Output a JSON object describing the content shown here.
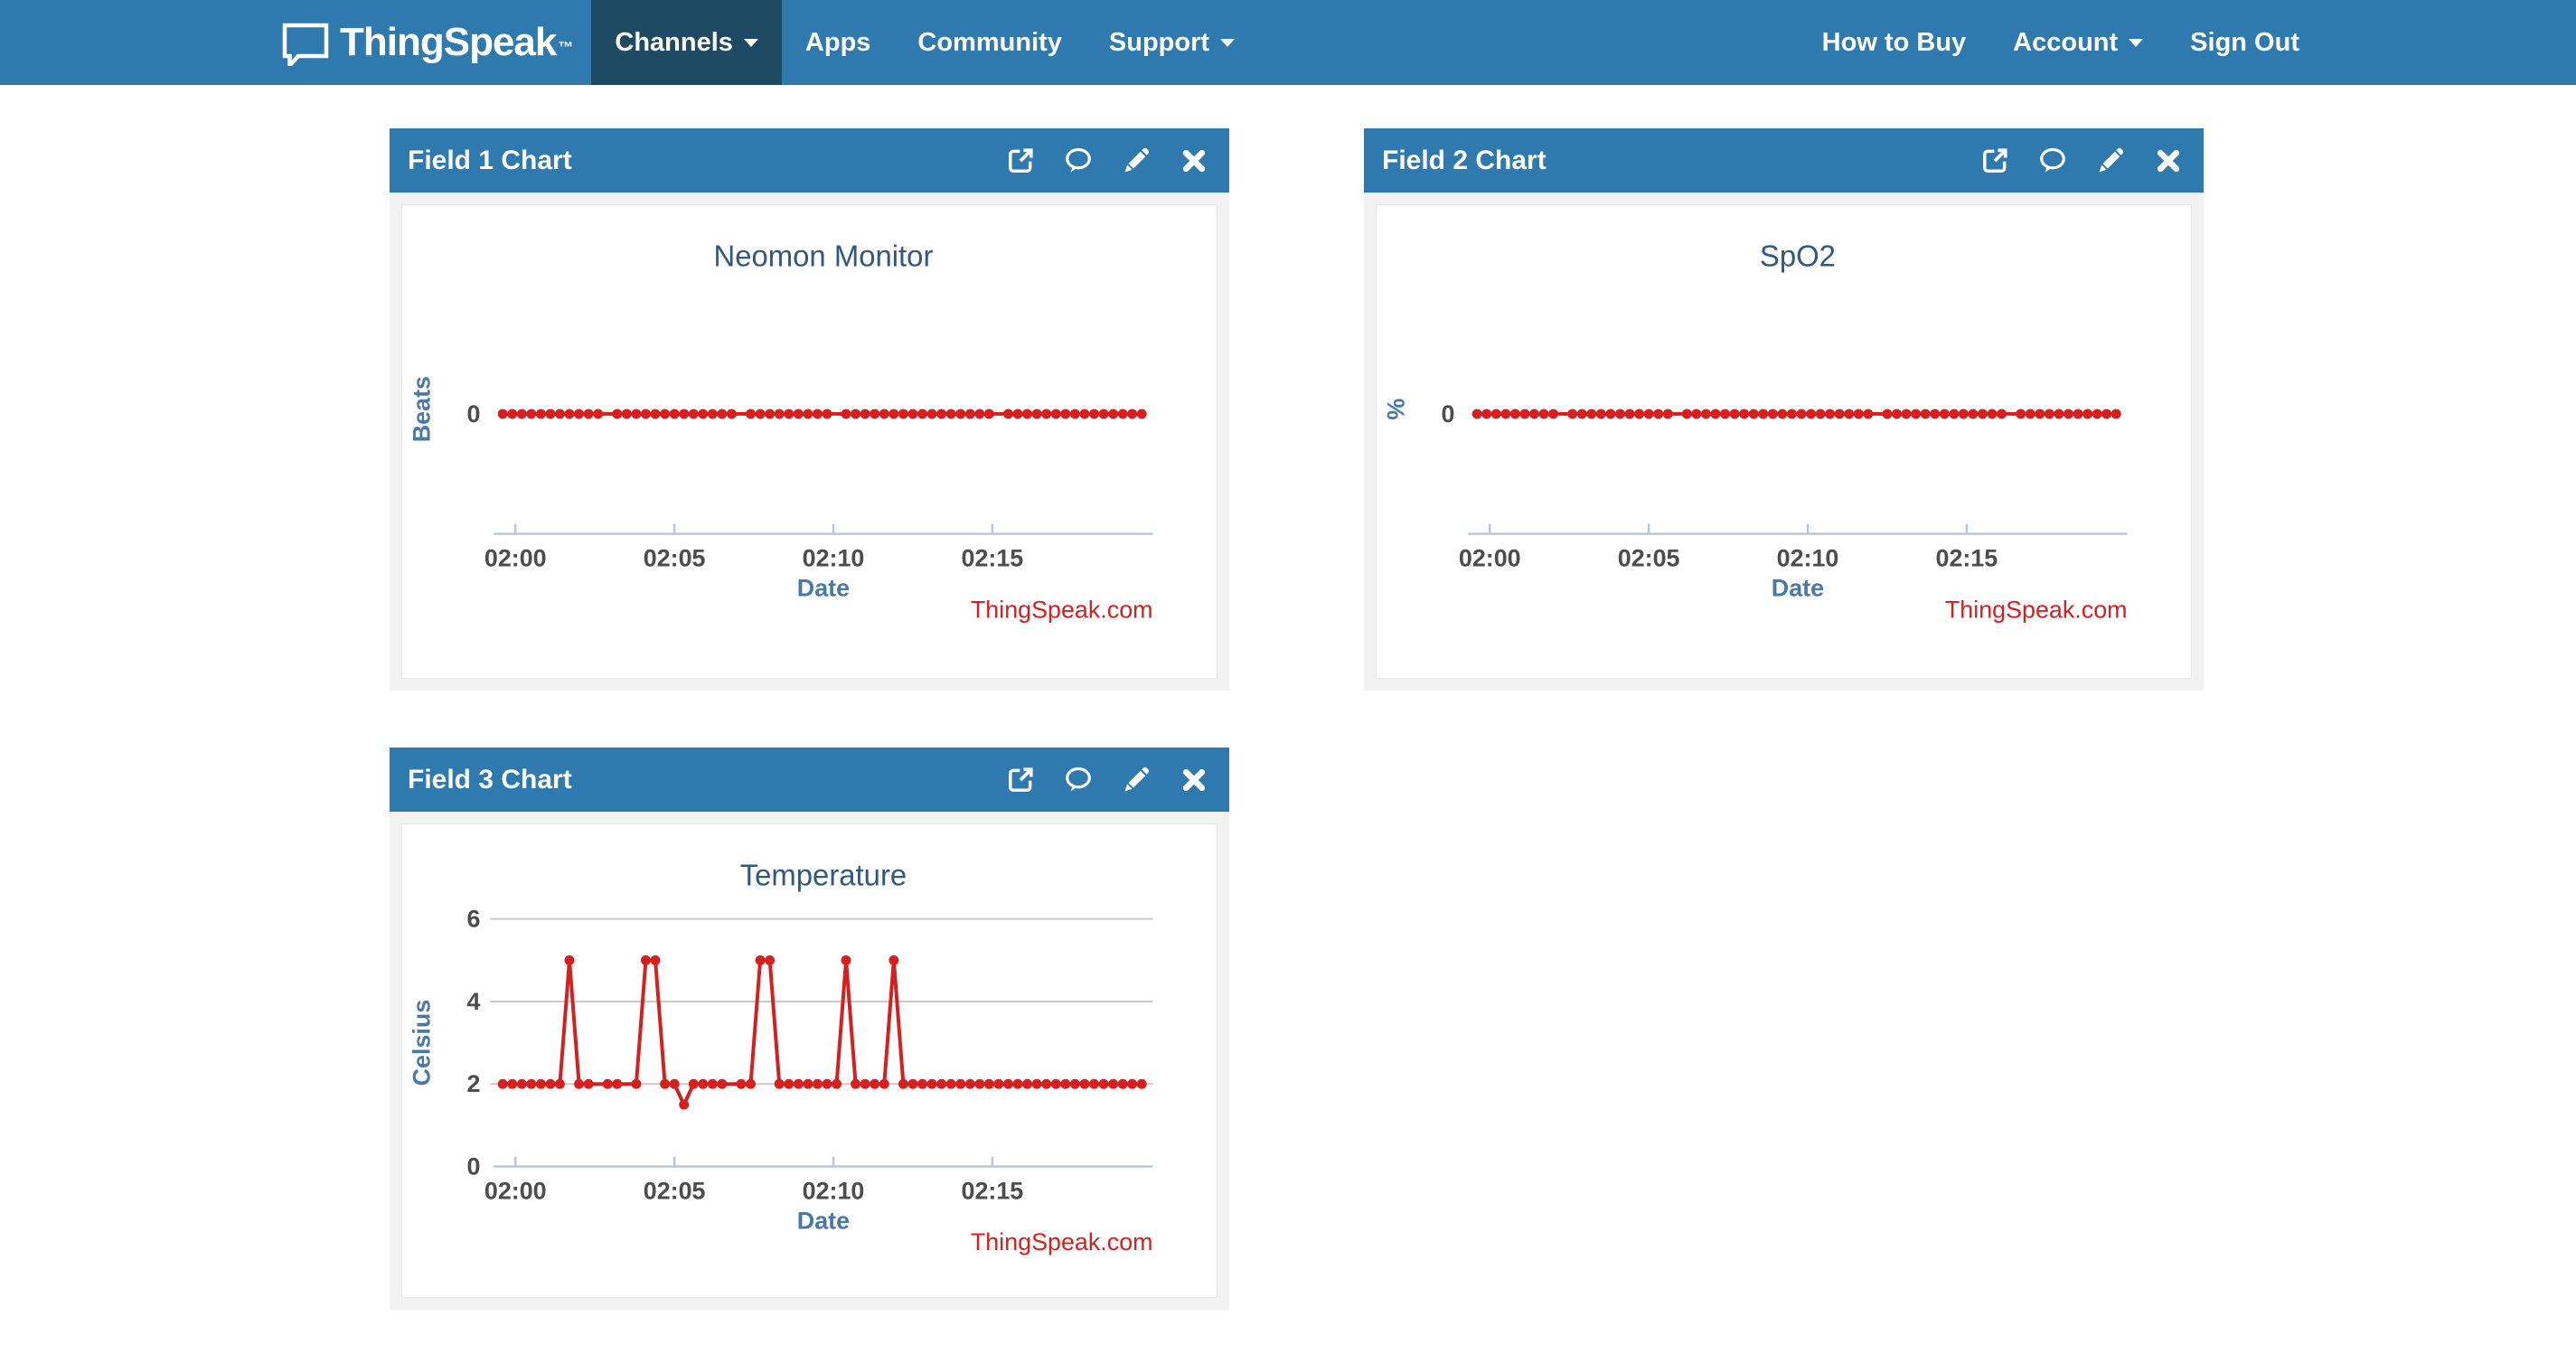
{
  "navbar": {
    "brand": {
      "name": "ThingSpeak",
      "tm": "™"
    },
    "items": [
      {
        "label": "Channels",
        "has_caret": true,
        "active": true
      },
      {
        "label": "Apps",
        "has_caret": false,
        "active": false
      },
      {
        "label": "Community",
        "has_caret": false,
        "active": false
      },
      {
        "label": "Support",
        "has_caret": true,
        "active": false
      }
    ],
    "right_items": [
      {
        "label": "How to Buy",
        "has_caret": false
      },
      {
        "label": "Account",
        "has_caret": true
      },
      {
        "label": "Sign Out",
        "has_caret": false
      }
    ]
  },
  "panels": [
    {
      "title": "Field 1 Chart"
    },
    {
      "title": "Field 2 Chart"
    },
    {
      "title": "Field 3 Chart"
    }
  ],
  "panel_actions": [
    "external-link-icon",
    "comment-icon",
    "edit-pencil-icon",
    "close-x-icon"
  ],
  "colors": {
    "navbar": "#2e79ae",
    "navbar_active": "#1d4962",
    "panel_header": "#2e79ae",
    "series": "#d62020",
    "axis_line": "#b7c9d8",
    "gridline": "#c9c9c9",
    "title_text": "#31597e",
    "axis_label_text": "#4779a9",
    "tick_text": "#4c4c4c",
    "watermark_text": "#d62020"
  },
  "chart_data": [
    {
      "type": "line",
      "title": "Neomon Monitor",
      "xlabel": "Date",
      "ylabel": "Beats",
      "watermark": "ThingSpeak.com",
      "legend": "none",
      "grid": "off",
      "xlim": [
        -0.68,
        20.05
      ],
      "ylim": [
        -1,
        1.2
      ],
      "xticks": [
        {
          "v": 0,
          "label": "02:00"
        },
        {
          "v": 5,
          "label": "02:05"
        },
        {
          "v": 10,
          "label": "02:10"
        },
        {
          "v": 15,
          "label": "02:15"
        }
      ],
      "yticks": [
        {
          "v": 0,
          "label": "0"
        }
      ],
      "grid_y": [],
      "x_unit": "minutes after 02:00",
      "x": [
        -0.4,
        -0.1,
        0.2,
        0.5,
        0.8,
        1.1,
        1.4,
        1.7,
        2.0,
        2.3,
        2.6,
        3.2,
        3.5,
        3.8,
        4.1,
        4.4,
        4.7,
        5.0,
        5.3,
        5.6,
        5.9,
        6.2,
        6.5,
        6.8,
        7.4,
        7.7,
        8.0,
        8.3,
        8.6,
        8.9,
        9.2,
        9.5,
        9.8,
        10.4,
        10.7,
        11.0,
        11.3,
        11.6,
        11.9,
        12.2,
        12.5,
        12.8,
        13.1,
        13.4,
        13.7,
        14.0,
        14.3,
        14.6,
        14.9,
        15.5,
        15.8,
        16.1,
        16.4,
        16.7,
        17.0,
        17.3,
        17.6,
        17.9,
        18.2,
        18.5,
        18.8,
        19.1,
        19.4,
        19.7
      ],
      "y": 0
    },
    {
      "type": "line",
      "title": "SpO2",
      "xlabel": "Date",
      "ylabel": "%",
      "watermark": "ThingSpeak.com",
      "legend": "none",
      "grid": "off",
      "xlim": [
        -0.68,
        20.05
      ],
      "ylim": [
        -1,
        1.2
      ],
      "xticks": [
        {
          "v": 0,
          "label": "02:00"
        },
        {
          "v": 5,
          "label": "02:05"
        },
        {
          "v": 10,
          "label": "02:10"
        },
        {
          "v": 15,
          "label": "02:15"
        }
      ],
      "yticks": [
        {
          "v": 0,
          "label": "0"
        }
      ],
      "grid_y": [],
      "x_unit": "minutes after 02:00",
      "x": [
        -0.4,
        -0.1,
        0.2,
        0.5,
        0.8,
        1.1,
        1.4,
        1.7,
        2.0,
        2.6,
        2.9,
        3.2,
        3.5,
        3.8,
        4.1,
        4.4,
        4.7,
        5.0,
        5.3,
        5.6,
        6.2,
        6.5,
        6.8,
        7.1,
        7.4,
        7.7,
        8.0,
        8.3,
        8.6,
        8.9,
        9.2,
        9.5,
        9.8,
        10.1,
        10.4,
        10.7,
        11.0,
        11.3,
        11.6,
        11.9,
        12.5,
        12.8,
        13.1,
        13.4,
        13.7,
        14.0,
        14.3,
        14.6,
        14.9,
        15.2,
        15.5,
        15.8,
        16.1,
        16.7,
        17.0,
        17.3,
        17.6,
        17.9,
        18.2,
        18.5,
        18.8,
        19.1,
        19.4,
        19.7
      ],
      "y": 0
    },
    {
      "type": "line",
      "title": "Temperature",
      "xlabel": "Date",
      "ylabel": "Celsius",
      "watermark": "ThingSpeak.com",
      "legend": "none",
      "grid": "horizontal",
      "xlim": [
        -0.68,
        20.05
      ],
      "ylim": [
        0,
        6.35
      ],
      "xticks": [
        {
          "v": 0,
          "label": "02:00"
        },
        {
          "v": 5,
          "label": "02:05"
        },
        {
          "v": 10,
          "label": "02:10"
        },
        {
          "v": 15,
          "label": "02:15"
        }
      ],
      "yticks": [
        {
          "v": 0,
          "label": "0"
        },
        {
          "v": 2,
          "label": "2"
        },
        {
          "v": 4,
          "label": "4"
        },
        {
          "v": 6,
          "label": "6"
        }
      ],
      "grid_y": [
        2,
        4,
        6
      ],
      "x_unit": "minutes after 02:00",
      "x": [
        -0.4,
        -0.1,
        0.2,
        0.5,
        0.8,
        1.1,
        1.4,
        1.7,
        2.0,
        2.3,
        2.9,
        3.2,
        3.8,
        4.1,
        4.4,
        4.7,
        5.0,
        5.3,
        5.6,
        5.9,
        6.2,
        6.5,
        7.1,
        7.4,
        7.7,
        8.0,
        8.3,
        8.6,
        8.9,
        9.2,
        9.5,
        9.8,
        10.1,
        10.4,
        10.7,
        11.0,
        11.3,
        11.6,
        11.9,
        12.2,
        12.5,
        12.8,
        13.1,
        13.4,
        13.7,
        14.0,
        14.3,
        14.6,
        14.9,
        15.2,
        15.5,
        15.8,
        16.1,
        16.4,
        16.7,
        17.0,
        17.3,
        17.6,
        17.9,
        18.2,
        18.5,
        18.8,
        19.1,
        19.4,
        19.7
      ],
      "y": [
        2,
        2,
        2,
        2,
        2,
        2,
        2,
        5,
        2,
        2,
        2,
        2,
        2,
        5,
        5,
        2,
        2,
        1.5,
        2,
        2,
        2,
        2,
        2,
        2,
        5,
        5,
        2,
        2,
        2,
        2,
        2,
        2,
        2,
        5,
        2,
        2,
        2,
        2,
        5,
        2,
        2,
        2,
        2,
        2,
        2,
        2,
        2,
        2,
        2,
        2,
        2,
        2,
        2,
        2,
        2,
        2,
        2,
        2,
        2,
        2,
        2,
        2,
        2,
        2,
        2
      ]
    }
  ]
}
